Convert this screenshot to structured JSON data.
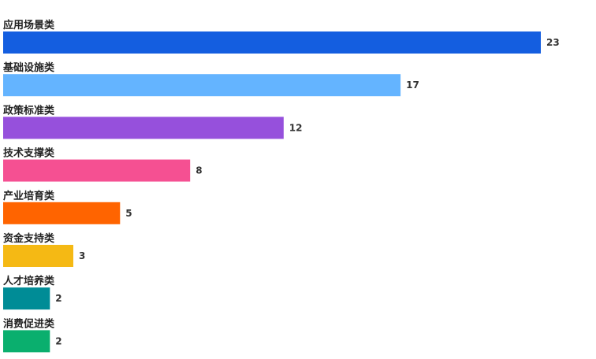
{
  "chart_data": {
    "type": "bar",
    "orientation": "horizontal",
    "title": "",
    "xlabel": "",
    "ylabel": "",
    "categories": [
      "应用场景类",
      "基础设施类",
      "政策标准类",
      "技术支撑类",
      "产业培育类",
      "资金支持类",
      "人才培养类",
      "消费促进类"
    ],
    "values": [
      23,
      17,
      12,
      8,
      5,
      3,
      2,
      2
    ],
    "colors": [
      "#145EE0",
      "#64B4FF",
      "#9650DC",
      "#F55092",
      "#FF6400",
      "#F5B914",
      "#008C96",
      "#0AAF6E"
    ],
    "xlim": [
      0,
      23
    ],
    "grid": false,
    "legend": "none"
  }
}
